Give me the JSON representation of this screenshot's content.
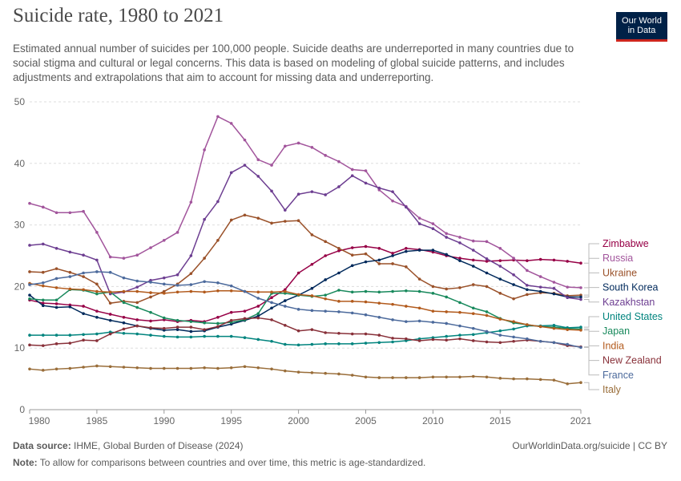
{
  "header": {
    "title": "Suicide rate, 1980 to 2021",
    "subtitle": "Estimated annual number of suicides per 100,000 people. Suicide deaths are underreported in many countries due to social stigma and cultural or legal concerns. This data is based on modeling of global suicide patterns, and includes adjustments and extrapolations that aim to account for missing data and underreporting.",
    "logo_line1": "Our World",
    "logo_line2": "in Data"
  },
  "footer": {
    "source_label": "Data source:",
    "source_text": "IHME, Global Burden of Disease (2024)",
    "url": "OurWorldinData.org/suicide | CC BY",
    "note_label": "Note:",
    "note_text": "To allow for comparisons between countries and over time, this metric is age-standardized."
  },
  "chart_data": {
    "type": "line",
    "title": "Suicide rate, 1980 to 2021",
    "xlabel": "",
    "ylabel": "",
    "xlim": [
      1980,
      2021
    ],
    "ylim": [
      0,
      50
    ],
    "x_ticks": [
      1980,
      1985,
      1990,
      1995,
      2000,
      2005,
      2010,
      2015,
      2021
    ],
    "y_ticks": [
      0,
      10,
      20,
      30,
      40,
      50
    ],
    "grid": "horizontal dashed",
    "legend_placement": "right (line-end labels)",
    "x": [
      1980,
      1981,
      1982,
      1983,
      1984,
      1985,
      1986,
      1987,
      1988,
      1989,
      1990,
      1991,
      1992,
      1993,
      1994,
      1995,
      1996,
      1997,
      1998,
      1999,
      2000,
      2001,
      2002,
      2003,
      2004,
      2005,
      2006,
      2007,
      2008,
      2009,
      2010,
      2011,
      2012,
      2013,
      2014,
      2015,
      2016,
      2017,
      2018,
      2019,
      2020,
      2021
    ],
    "series": [
      {
        "name": "Zimbabwe",
        "color": "#970046",
        "values": [
          17.8,
          17.3,
          17.2,
          17,
          16.8,
          16,
          15.5,
          15,
          14.6,
          14.4,
          14.6,
          14.3,
          14.5,
          14.3,
          15,
          15.8,
          16,
          16.8,
          18.2,
          19.5,
          22.2,
          23.6,
          25,
          25.8,
          26.3,
          26.5,
          26.2,
          25.4,
          26.2,
          26,
          25.6,
          25,
          24.6,
          24.3,
          24.1,
          24.2,
          24.3,
          24.2,
          24.4,
          24.3,
          24.1,
          23.8
        ]
      },
      {
        "name": "Russia",
        "color": "#a2559c",
        "values": [
          33.5,
          32.9,
          32,
          32,
          32.2,
          28.8,
          24.8,
          24.6,
          25.1,
          26.3,
          27.5,
          28.8,
          33.7,
          42.2,
          47.6,
          46.5,
          43.8,
          40.6,
          39.7,
          42.8,
          43.3,
          42.6,
          41.3,
          40.3,
          39,
          38.8,
          35.7,
          33.9,
          33,
          31.1,
          30.2,
          28.6,
          28,
          27.4,
          27.3,
          26.2,
          24.6,
          22.6,
          21.6,
          20.7,
          19.9,
          19.8
        ]
      },
      {
        "name": "Ukraine",
        "color": "#9a5129",
        "values": [
          22.4,
          22.3,
          22.9,
          22.3,
          21.6,
          20.4,
          17.3,
          17.6,
          17.4,
          18.3,
          19.2,
          20.4,
          22.1,
          24.6,
          27.5,
          30.8,
          31.6,
          31.1,
          30.3,
          30.6,
          30.7,
          28.4,
          27.3,
          26.2,
          25.1,
          25.3,
          23.7,
          23.7,
          23.2,
          21.2,
          20,
          19.6,
          19.8,
          20.3,
          20,
          18.9,
          18,
          18.7,
          19,
          18.9,
          18.5,
          18.6
        ]
      },
      {
        "name": "South Korea",
        "color": "#00295b",
        "values": [
          18.6,
          16.9,
          16.6,
          16.7,
          15.6,
          15,
          14.5,
          14.1,
          13.6,
          13.2,
          12.9,
          13,
          12.7,
          12.8,
          13.4,
          13.9,
          14.5,
          15.2,
          16.5,
          17.7,
          18.6,
          19.7,
          21.1,
          22.2,
          23.4,
          24,
          24.3,
          25,
          25.7,
          25.9,
          25.9,
          25.2,
          24.2,
          23.3,
          22.2,
          21.2,
          20.3,
          19.5,
          19.2,
          18.8,
          18.3,
          18.3
        ]
      },
      {
        "name": "Kazakhstan",
        "color": "#6d3e91",
        "values": [
          26.7,
          26.9,
          26.2,
          25.6,
          25.1,
          24.3,
          18.8,
          19.1,
          19.9,
          21,
          21.4,
          21.9,
          25,
          30.9,
          33.8,
          38.5,
          39.7,
          37.9,
          35.5,
          32.4,
          35,
          35.4,
          34.9,
          36.2,
          38,
          36.8,
          36,
          35.4,
          32.9,
          30.2,
          29.4,
          28,
          27.1,
          25.9,
          24.5,
          23.3,
          21.9,
          20.2,
          19.9,
          19.7,
          18.2,
          17.9
        ]
      },
      {
        "name": "Japan",
        "color": "#18895c",
        "values": [
          18,
          17.8,
          17.8,
          19.5,
          19.4,
          18.8,
          19.1,
          17.4,
          16.6,
          15.8,
          14.9,
          14.5,
          14.3,
          14.1,
          14,
          14.2,
          14.6,
          15.6,
          18.9,
          18.9,
          18.6,
          18.4,
          18.6,
          19.4,
          19.1,
          19.2,
          19.1,
          19.2,
          19.3,
          19.2,
          18.9,
          18.3,
          17.4,
          16.5,
          15.9,
          14.8,
          14.1,
          13.8,
          13.5,
          13.4,
          13.2,
          13.1
        ]
      },
      {
        "name": "United States",
        "color": "#00847e",
        "values": [
          12.1,
          12.1,
          12.1,
          12.1,
          12.2,
          12.3,
          12.6,
          12.4,
          12.3,
          12.1,
          11.9,
          11.8,
          11.8,
          11.9,
          11.9,
          11.9,
          11.7,
          11.4,
          11.1,
          10.6,
          10.5,
          10.6,
          10.7,
          10.7,
          10.7,
          10.8,
          10.9,
          11,
          11.2,
          11.5,
          11.7,
          11.9,
          12.1,
          12.2,
          12.5,
          12.8,
          13.1,
          13.6,
          13.6,
          13.7,
          13.3,
          13.4
        ]
      },
      {
        "name": "India",
        "color": "#b25a1c",
        "values": [
          20.5,
          20.1,
          19.8,
          19.6,
          19.5,
          19.2,
          19.1,
          19.2,
          19.2,
          19,
          18.9,
          19.1,
          19.2,
          19.1,
          19.3,
          19.3,
          19.2,
          19.1,
          19.1,
          19.2,
          18.7,
          18.5,
          18,
          17.6,
          17.6,
          17.5,
          17.3,
          17.1,
          16.8,
          16.5,
          16,
          15.9,
          15.8,
          15.6,
          15.3,
          14.7,
          14.3,
          13.8,
          13.5,
          13.2,
          13,
          12.9
        ]
      },
      {
        "name": "New Zealand",
        "color": "#883039",
        "values": [
          10.5,
          10.4,
          10.7,
          10.8,
          11.3,
          11.2,
          12.3,
          13.1,
          13.6,
          13.3,
          13.2,
          13.4,
          13.4,
          13,
          13.5,
          14.5,
          14.8,
          14.9,
          14.6,
          13.7,
          12.8,
          13,
          12.5,
          12.4,
          12.3,
          12.3,
          12.1,
          11.6,
          11.5,
          11.2,
          11.4,
          11.3,
          11.5,
          11.2,
          11,
          10.9,
          11.1,
          11.3,
          11.1,
          10.9,
          10.4,
          10.2
        ]
      },
      {
        "name": "France",
        "color": "#4c6a9c",
        "values": [
          20.3,
          20.6,
          21.3,
          21.6,
          22.2,
          22.4,
          22.3,
          21.4,
          20.9,
          20.7,
          20.4,
          20.2,
          20.3,
          20.8,
          20.6,
          20.1,
          19.2,
          18.1,
          17.4,
          16.8,
          16.3,
          16.1,
          16,
          15.9,
          15.7,
          15.4,
          15,
          14.6,
          14.3,
          14.4,
          14.2,
          14,
          13.6,
          13.2,
          12.7,
          12.1,
          11.8,
          11.5,
          11.1,
          10.9,
          10.6,
          10.1
        ]
      },
      {
        "name": "Italy",
        "color": "#996d39",
        "values": [
          6.6,
          6.4,
          6.6,
          6.7,
          6.9,
          7.1,
          7,
          6.9,
          6.8,
          6.7,
          6.7,
          6.7,
          6.7,
          6.8,
          6.7,
          6.8,
          7,
          6.8,
          6.6,
          6.3,
          6.1,
          6,
          5.9,
          5.8,
          5.6,
          5.3,
          5.2,
          5.2,
          5.2,
          5.2,
          5.3,
          5.3,
          5.3,
          5.4,
          5.3,
          5.1,
          5,
          5,
          4.9,
          4.8,
          4.2,
          4.4
        ]
      }
    ]
  }
}
